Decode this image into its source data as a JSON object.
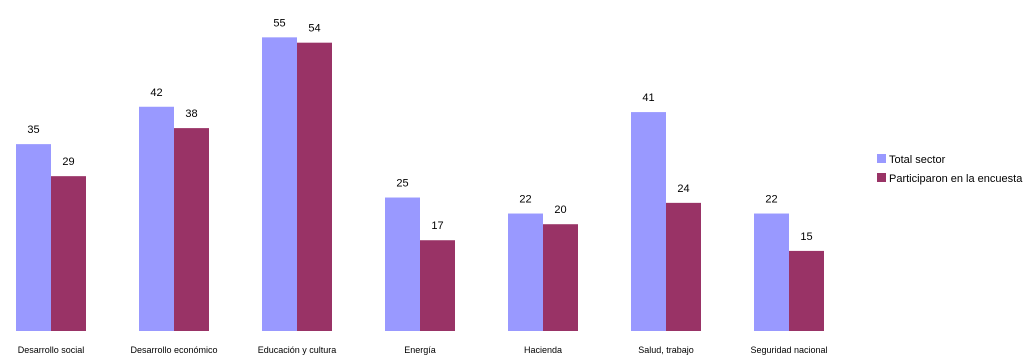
{
  "chart_data": {
    "type": "bar",
    "title": "",
    "xlabel": "",
    "ylabel": "",
    "ylim": [
      0,
      56
    ],
    "grid": false,
    "legend_position": "right",
    "categories": [
      "Desarrollo social",
      "Desarrollo económico",
      "Educación y cultura",
      "Energía",
      "Hacienda",
      "Salud, trabajo",
      "Seguridad nacional"
    ],
    "series": [
      {
        "name": "Total sector",
        "color": "#9999FF",
        "values": [
          35,
          42,
          55,
          25,
          22,
          41,
          22
        ]
      },
      {
        "name": "Participaron en la encuesta",
        "color": "#993366",
        "values": [
          29,
          38,
          54,
          17,
          20,
          24,
          15
        ]
      }
    ]
  }
}
